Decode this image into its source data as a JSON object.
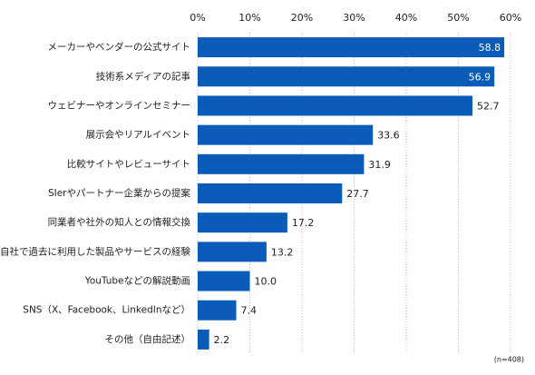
{
  "chart_data": {
    "type": "hbar",
    "categories": [
      "メーカーやベンダーの公式サイト",
      "技術系メディアの記事",
      "ウェビナーやオンラインセミナー",
      "展示会やリアルイベント",
      "比較サイトやレビューサイト",
      "SIerやパートナー企業からの提案",
      "同業者や社外の知人との情報交換",
      "自社で過去に利用した製品やサービスの経験",
      "YouTubeなどの解説動画",
      "SNS（X、Facebook、LinkedInなど）",
      "その他（自由記述）"
    ],
    "values": [
      58.8,
      56.9,
      52.7,
      33.6,
      31.9,
      27.7,
      17.2,
      13.2,
      10.0,
      7.4,
      2.2
    ],
    "value_labels": [
      "58.8",
      "56.9",
      "52.7",
      "33.6",
      "31.9",
      "27.7",
      "17.2",
      "13.2",
      "10.0",
      "7.4",
      "2.2"
    ],
    "color": "#0a5cb8",
    "xlim": [
      0,
      60
    ],
    "xticks": [
      {
        "value": 0,
        "label": "0%"
      },
      {
        "value": 10,
        "label": "10%"
      },
      {
        "value": 20,
        "label": "20%"
      },
      {
        "value": 30,
        "label": "30%"
      },
      {
        "value": 40,
        "label": "40%"
      },
      {
        "value": 50,
        "label": "50%"
      },
      {
        "value": 60,
        "label": "60%"
      }
    ],
    "grid": true,
    "note": "(n=408)"
  }
}
